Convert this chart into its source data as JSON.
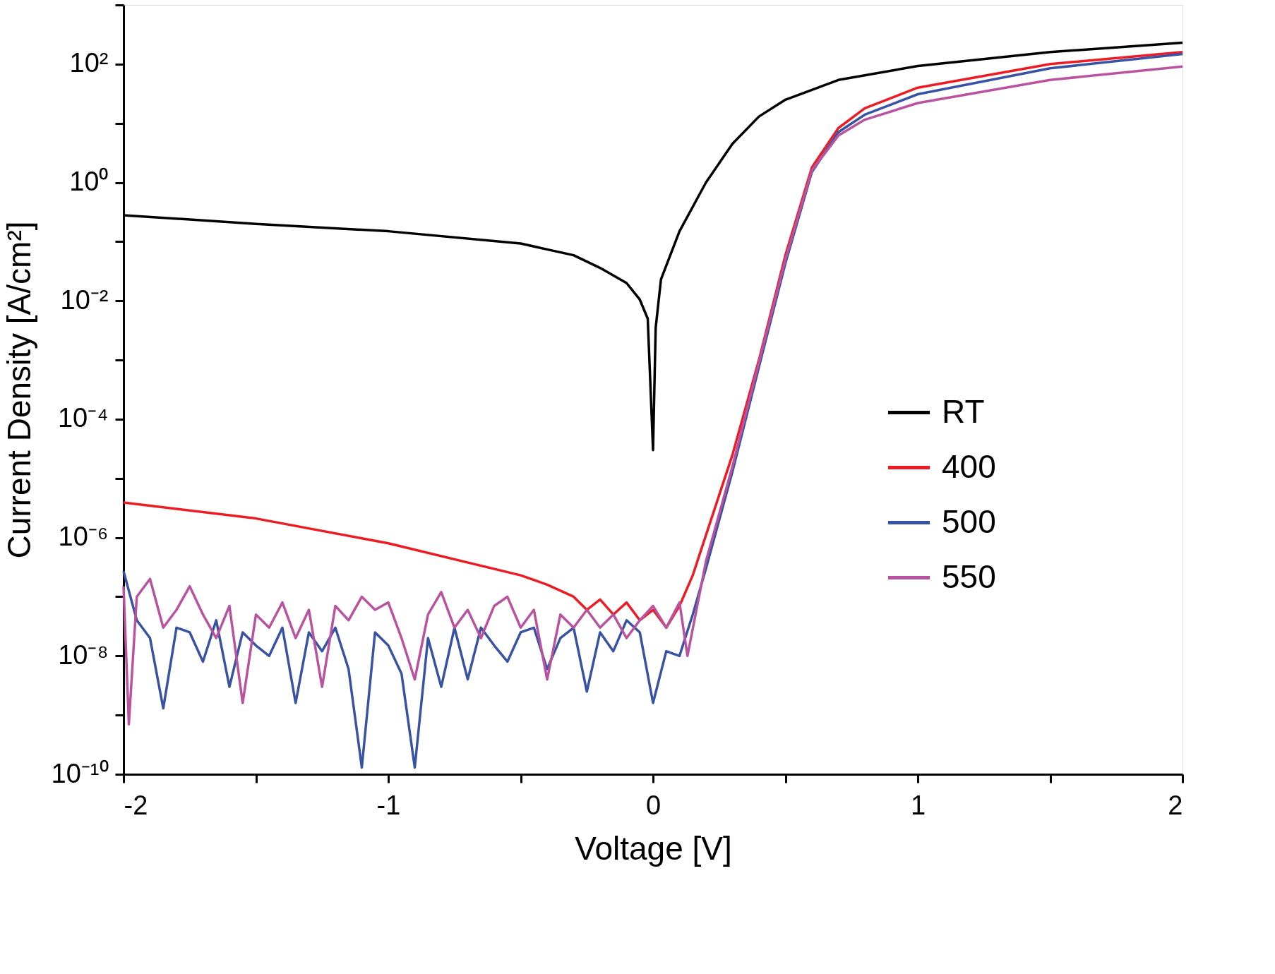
{
  "chart_data": {
    "type": "line",
    "xlabel": "Voltage [V]",
    "ylabel": "Current Density [A/cm²]",
    "log": "y",
    "grid": false,
    "legend": "right",
    "line_style": "solid",
    "marker": "none",
    "xlim": [
      -2,
      2
    ],
    "xticks": [
      -2,
      {
        "value": -1.5,
        "label": null
      },
      -1,
      {
        "value": -0.5,
        "label": null
      },
      0,
      {
        "value": 0.5,
        "label": null
      },
      1,
      {
        "value": 1.5,
        "label": null
      },
      2
    ],
    "ylim": [
      1e-10,
      1000
    ],
    "yticks": [
      {
        "value": 1e-10,
        "label": "10⁻¹⁰"
      },
      {
        "value": 1e-09,
        "label": null
      },
      {
        "value": 1e-08,
        "label": "10⁻⁸"
      },
      {
        "value": 1e-07,
        "label": null
      },
      {
        "value": 1e-06,
        "label": "10⁻⁶"
      },
      {
        "value": 1e-05,
        "label": null
      },
      {
        "value": 0.0001,
        "label": "10⁻⁴"
      },
      {
        "value": 0.001,
        "label": null
      },
      {
        "value": 0.01,
        "label": "10⁻²"
      },
      {
        "value": 0.1,
        "label": null
      },
      {
        "value": 1,
        "label": "10⁰"
      },
      {
        "value": 10,
        "label": null
      },
      {
        "value": 100,
        "label": "10²"
      },
      {
        "value": 1000,
        "label": null
      }
    ],
    "series": [
      {
        "name": "RT",
        "color": "#000000",
        "x": [
          -2,
          -1.5,
          -1,
          -0.5,
          -0.3,
          -0.2,
          -0.1,
          -0.05,
          -0.02,
          0,
          0.01,
          0.03,
          0.1,
          0.2,
          0.3,
          0.4,
          0.5,
          0.7,
          1,
          1.5,
          2
        ],
        "values": [
          0.28,
          0.2,
          0.15,
          0.093,
          0.059,
          0.036,
          0.02,
          0.0105,
          0.005,
          3e-05,
          0.0035,
          0.023,
          0.15,
          1,
          4.5,
          13,
          25,
          54,
          93,
          160,
          230
        ]
      },
      {
        "name": "400",
        "color": "#ed1c24",
        "x": [
          -2,
          -1.5,
          -1,
          -0.5,
          -0.4,
          -0.3,
          -0.25,
          -0.2,
          -0.15,
          -0.1,
          -0.05,
          0,
          0.05,
          0.1,
          0.15,
          0.2,
          0.3,
          0.4,
          0.5,
          0.6,
          0.7,
          0.8,
          1,
          1.5,
          2
        ],
        "values": [
          3.9e-06,
          2.1e-06,
          8e-07,
          2.3e-07,
          1.6e-07,
          1e-07,
          6e-08,
          9e-08,
          5e-08,
          8e-08,
          4e-08,
          6e-08,
          3e-08,
          7e-08,
          2.3e-07,
          1.1e-06,
          2.5e-05,
          0.001,
          0.059,
          1.8,
          8.3,
          18,
          40,
          100,
          160
        ]
      },
      {
        "name": "500",
        "color": "#3953a4",
        "x": [
          -2,
          -1.95,
          -1.9,
          -1.85,
          -1.8,
          -1.75,
          -1.7,
          -1.65,
          -1.6,
          -1.55,
          -1.5,
          -1.45,
          -1.4,
          -1.35,
          -1.3,
          -1.25,
          -1.2,
          -1.15,
          -1.1,
          -1.05,
          -1,
          -0.95,
          -0.9,
          -0.85,
          -0.8,
          -0.75,
          -0.7,
          -0.65,
          -0.6,
          -0.55,
          -0.5,
          -0.45,
          -0.4,
          -0.35,
          -0.3,
          -0.25,
          -0.2,
          -0.15,
          -0.1,
          -0.05,
          0,
          0.05,
          0.1,
          0.15,
          0.2,
          0.3,
          0.4,
          0.5,
          0.6,
          0.7,
          0.8,
          1,
          1.5,
          2
        ],
        "values": [
          2.7e-07,
          4e-08,
          2e-08,
          1.3e-09,
          3e-08,
          2.5e-08,
          8e-09,
          4e-08,
          3e-09,
          2.5e-08,
          1.5e-08,
          1e-08,
          3e-08,
          1.6e-09,
          2.5e-08,
          1.2e-08,
          3e-08,
          6e-09,
          1.3e-10,
          2.5e-08,
          1.5e-08,
          5e-09,
          1.3e-10,
          2e-08,
          3e-09,
          3e-08,
          4e-09,
          3e-08,
          1.5e-08,
          8e-09,
          2.5e-08,
          3e-08,
          6e-09,
          2e-08,
          3e-08,
          2.5e-09,
          2.5e-08,
          1.2e-08,
          4e-08,
          2.5e-08,
          1.6e-09,
          1.2e-08,
          1e-08,
          5e-08,
          3e-07,
          1.3e-05,
          0.00076,
          0.043,
          1.5,
          7.1,
          14,
          31,
          85,
          148
        ]
      },
      {
        "name": "550",
        "color": "#b9529f",
        "x": [
          -2,
          -1.98,
          -1.95,
          -1.9,
          -1.85,
          -1.8,
          -1.75,
          -1.7,
          -1.65,
          -1.6,
          -1.55,
          -1.5,
          -1.45,
          -1.4,
          -1.35,
          -1.3,
          -1.25,
          -1.2,
          -1.15,
          -1.1,
          -1.05,
          -1,
          -0.95,
          -0.9,
          -0.85,
          -0.8,
          -0.75,
          -0.7,
          -0.65,
          -0.6,
          -0.55,
          -0.5,
          -0.45,
          -0.4,
          -0.35,
          -0.3,
          -0.25,
          -0.2,
          -0.15,
          -0.1,
          -0.05,
          0,
          0.05,
          0.1,
          0.13,
          0.2,
          0.3,
          0.4,
          0.5,
          0.6,
          0.7,
          0.8,
          1,
          1.5,
          2
        ],
        "values": [
          1.5e-07,
          7e-10,
          1e-07,
          2e-07,
          3e-08,
          6e-08,
          1.5e-07,
          5e-08,
          2e-08,
          7e-08,
          1.6e-09,
          5e-08,
          3e-08,
          8e-08,
          2e-08,
          6e-08,
          3e-09,
          7e-08,
          4e-08,
          1e-07,
          6e-08,
          8e-08,
          2e-08,
          4e-09,
          5e-08,
          1.2e-07,
          3e-08,
          6e-08,
          2e-08,
          7e-08,
          1e-07,
          3e-08,
          6e-08,
          4e-09,
          5e-08,
          3e-08,
          6e-08,
          3e-08,
          5e-08,
          2e-08,
          4e-08,
          7e-08,
          3e-08,
          8e-08,
          1e-08,
          4e-07,
          1.6e-05,
          0.0009,
          0.05,
          1.6,
          6.2,
          11.5,
          22,
          54,
          91
        ]
      }
    ]
  }
}
